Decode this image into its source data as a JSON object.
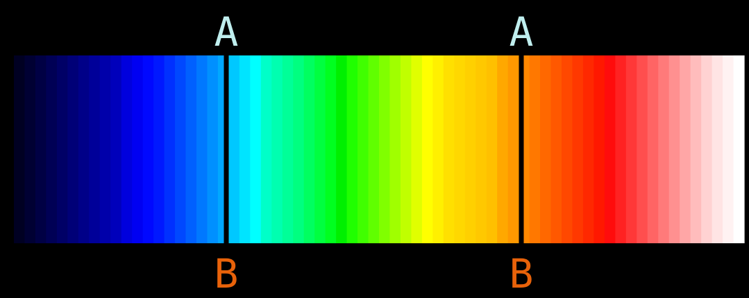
{
  "colors": {
    "background": "#000000",
    "divider": "#000000",
    "label_top": "#bfeeee",
    "label_bottom": "#e8620a"
  },
  "spectrum": {
    "stops": [
      "#000022",
      "#000033",
      "#000044",
      "#000055",
      "#000066",
      "#000077",
      "#000088",
      "#000099",
      "#0000aa",
      "#0000bb",
      "#0000dd",
      "#0000f2",
      "#0008ff",
      "#0018ff",
      "#0030ff",
      "#0048ff",
      "#0060ff",
      "#0078ff",
      "#0090ff",
      "#00a8ff",
      "#00c8ff",
      "#00e4ff",
      "#00ffff",
      "#00ffc8",
      "#00ffb0",
      "#00ff98",
      "#00ff80",
      "#00ff60",
      "#00ff40",
      "#00ff20",
      "#00f000",
      "#20ff00",
      "#40ff00",
      "#60ff00",
      "#80ff00",
      "#a0ff00",
      "#c0ff00",
      "#e0ff00",
      "#ffff00",
      "#fff000",
      "#ffe000",
      "#ffd800",
      "#ffd000",
      "#ffc800",
      "#ffc000",
      "#ffa800",
      "#ff9800",
      "#ff8800",
      "#ff7800",
      "#ff6800",
      "#ff5800",
      "#ff4800",
      "#ff3800",
      "#ff2800",
      "#ff1800",
      "#ff0c0c",
      "#ff2222",
      "#ff3838",
      "#ff4e4e",
      "#ff6464",
      "#ff7a7a",
      "#ff9090",
      "#ffa6a6",
      "#ffbcbc",
      "#ffd2d2",
      "#ffe4e4",
      "#fff2f2",
      "#ffffff"
    ]
  },
  "markers": [
    {
      "top_label": "A",
      "bottom_label": "B"
    },
    {
      "top_label": "A",
      "bottom_label": "B"
    }
  ]
}
